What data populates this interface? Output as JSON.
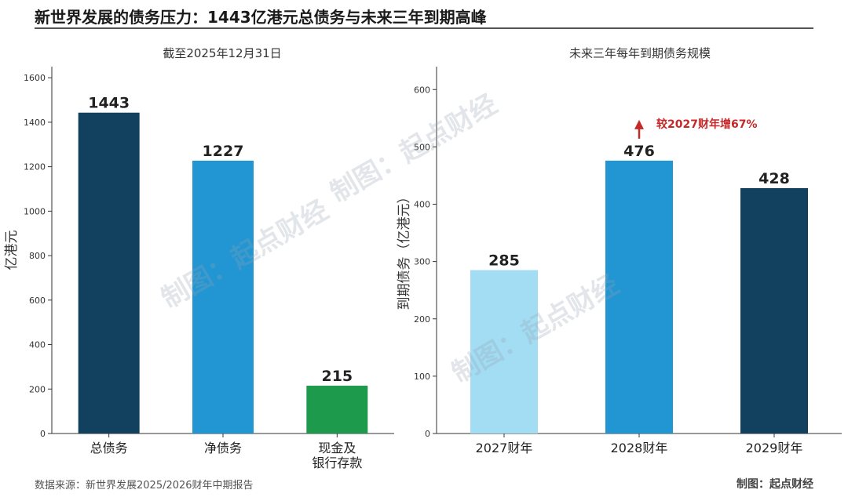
{
  "title": "新世界发展的债务压力：1443亿港元总债务与未来三年到期高峰",
  "source": "数据来源：新世界发展2025/2026财年中期报告",
  "credit": "制图：起点财经",
  "watermark_text": "制图：起点财经",
  "colors": {
    "dark_navy": "#12405f",
    "blue": "#2196d3",
    "green": "#1e9a4c",
    "light_blue": "#a3ddf3",
    "annotation_red": "#c62828"
  },
  "chart_data": [
    {
      "type": "bar",
      "title": "截至2025年12月31日",
      "xlabel": "",
      "ylabel": "亿港元",
      "categories": [
        "总债务",
        "净债务",
        "现金及\n银行存款"
      ],
      "values": [
        1443,
        1227,
        215
      ],
      "data_labels": [
        "1443",
        "1227",
        "215"
      ],
      "colors": [
        "#12405f",
        "#2196d3",
        "#1e9a4c"
      ],
      "ylim": [
        0,
        1650
      ],
      "yticks": [
        0,
        200,
        400,
        600,
        800,
        1000,
        1200,
        1400,
        1600
      ],
      "grid": false
    },
    {
      "type": "bar",
      "title": "未来三年每年到期债务规模",
      "xlabel": "",
      "ylabel": "到期债务（亿港元）",
      "categories": [
        "2027财年",
        "2028财年",
        "2029财年"
      ],
      "values": [
        285,
        476,
        428
      ],
      "data_labels": [
        "285",
        "476",
        "428"
      ],
      "colors": [
        "#a3ddf3",
        "#2196d3",
        "#12405f"
      ],
      "ylim": [
        0,
        640
      ],
      "yticks": [
        0,
        100,
        200,
        300,
        400,
        500,
        600
      ],
      "grid": false,
      "annotation": {
        "text": "较2027财年增67%",
        "category_index": 1
      }
    }
  ]
}
